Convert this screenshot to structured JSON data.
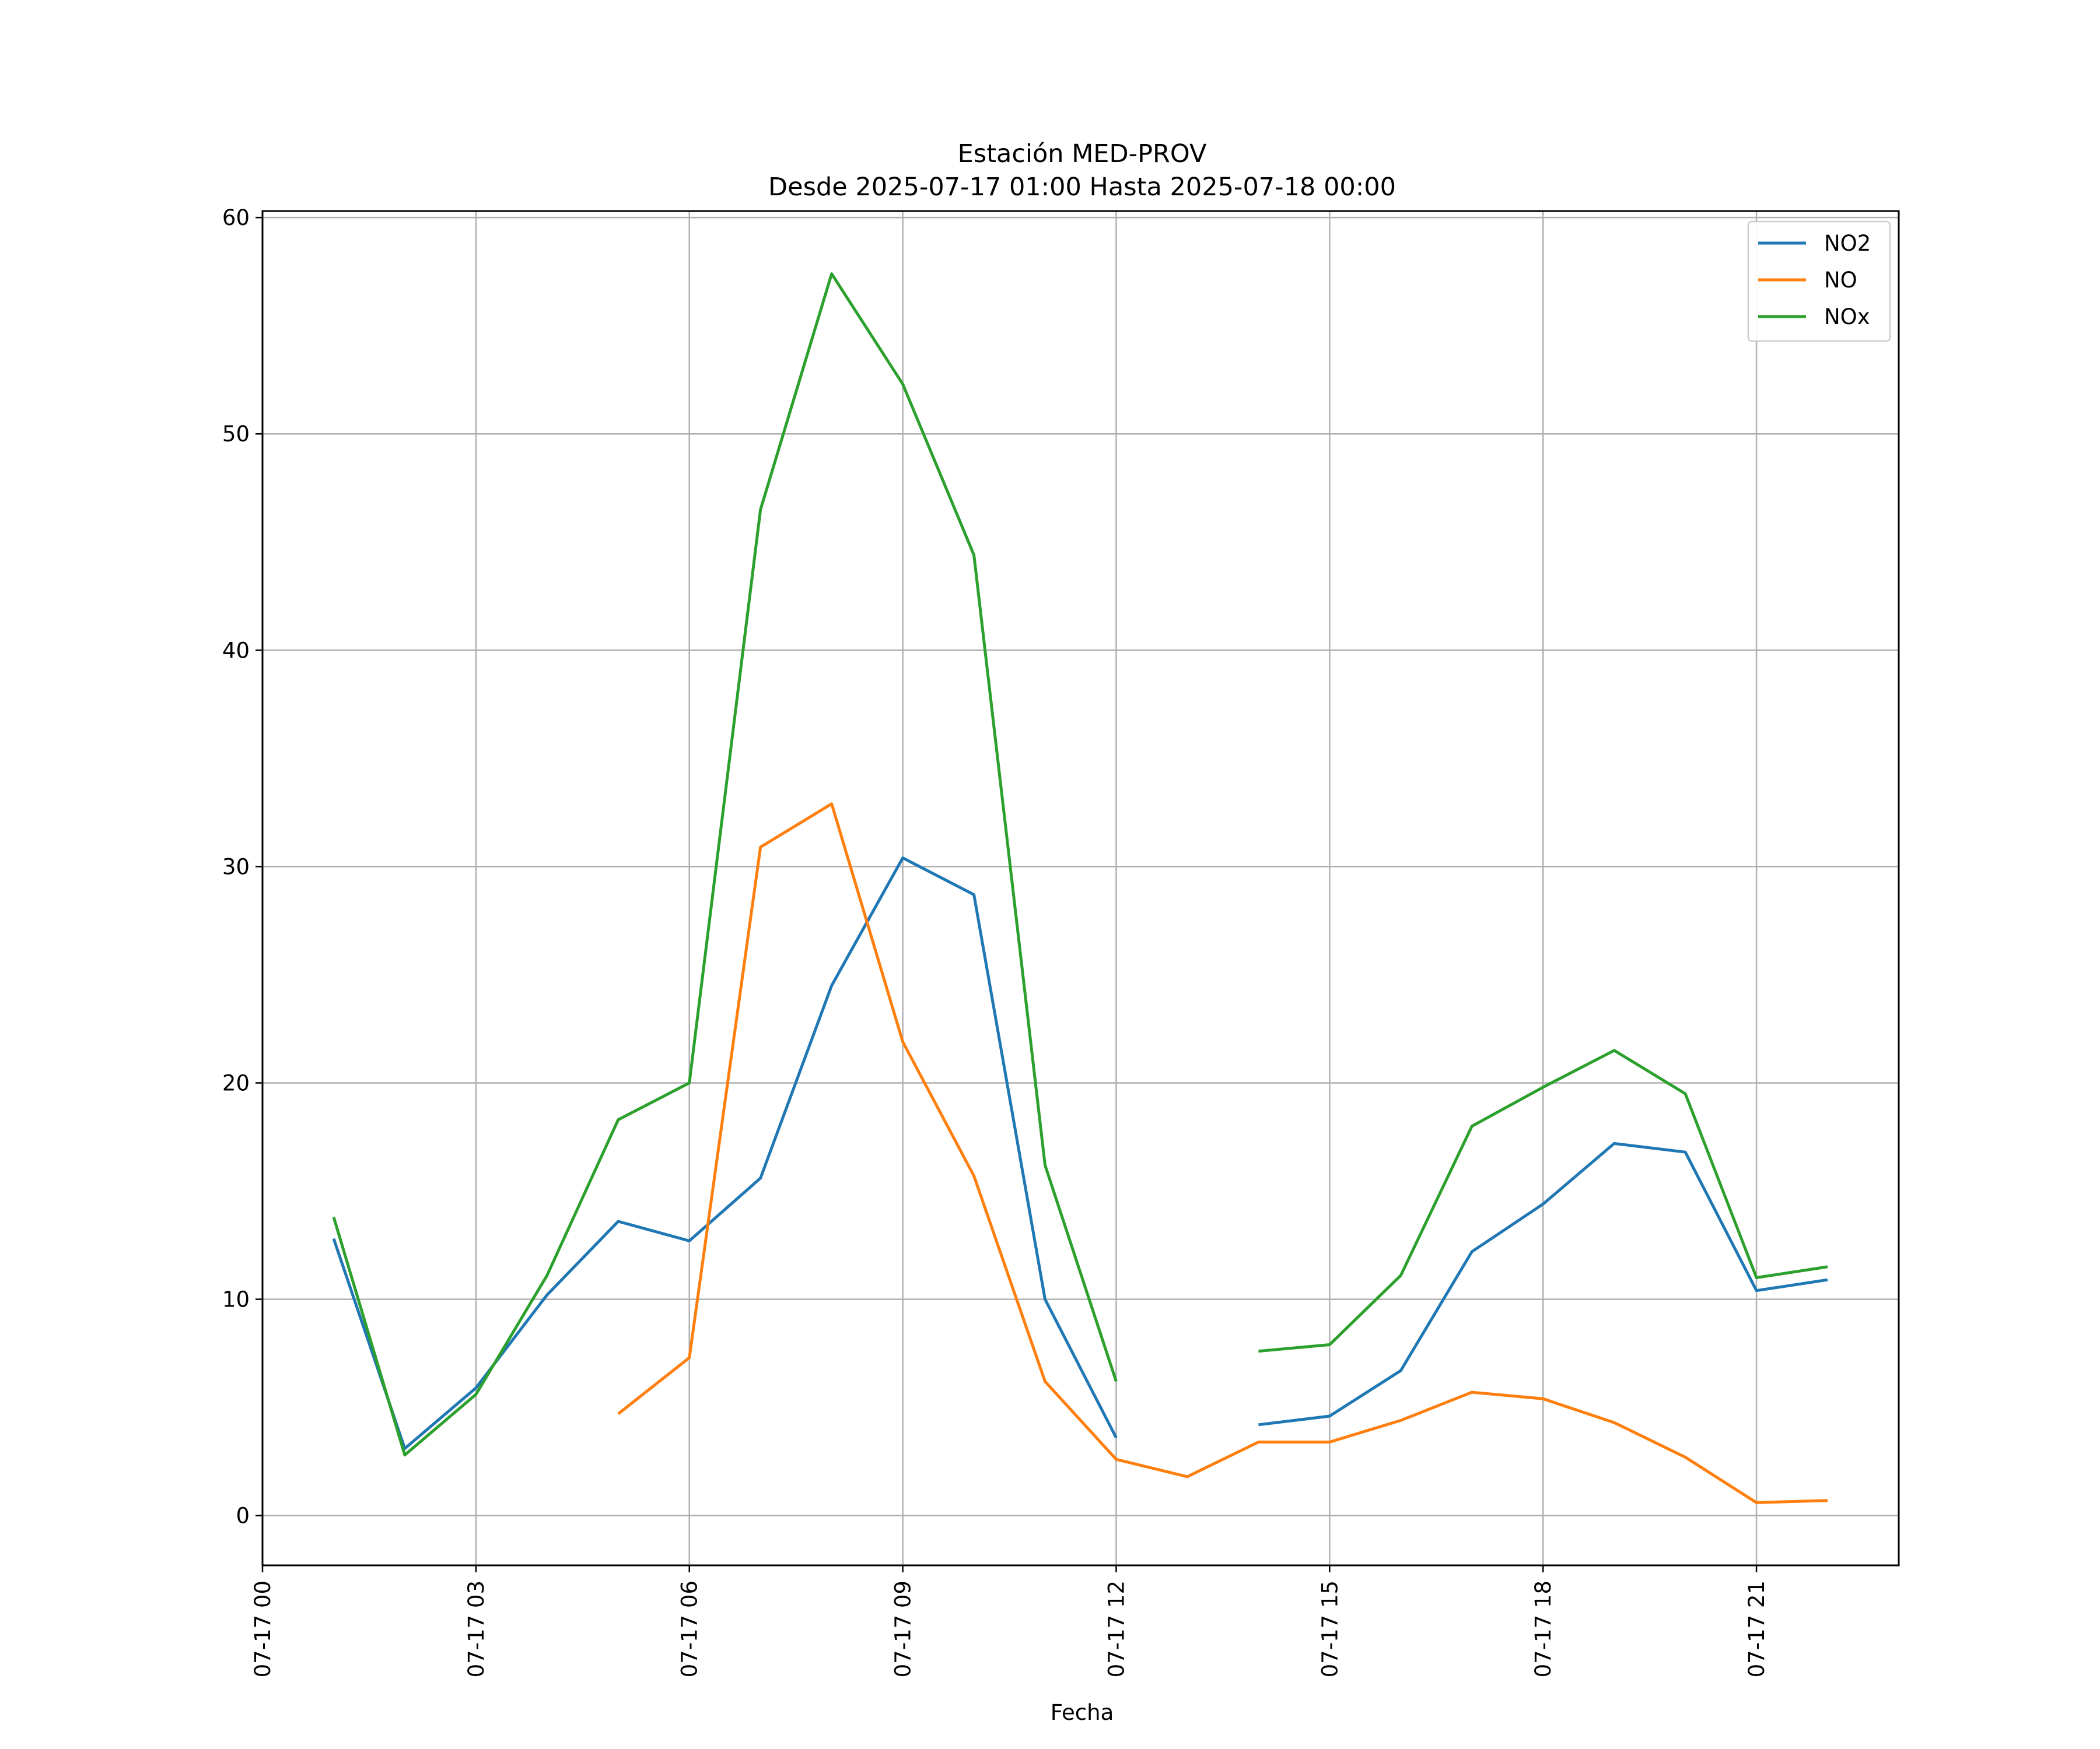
{
  "chart_data": {
    "type": "line",
    "title": "Estación MED-PROV",
    "subtitle": "Desde 2025-07-17 01:00 Hasta 2025-07-18 00:00",
    "xlabel": "Fecha",
    "ylabel": "",
    "x": [
      "2025-07-17 01:00",
      "2025-07-17 02:00",
      "2025-07-17 03:00",
      "2025-07-17 04:00",
      "2025-07-17 05:00",
      "2025-07-17 06:00",
      "2025-07-17 07:00",
      "2025-07-17 08:00",
      "2025-07-17 09:00",
      "2025-07-17 10:00",
      "2025-07-17 11:00",
      "2025-07-17 12:00",
      "2025-07-17 13:00",
      "2025-07-17 14:00",
      "2025-07-17 15:00",
      "2025-07-17 16:00",
      "2025-07-17 17:00",
      "2025-07-17 18:00",
      "2025-07-17 19:00",
      "2025-07-17 20:00",
      "2025-07-17 21:00",
      "2025-07-17 22:00"
    ],
    "xlim": [
      "2025-07-17 00:00",
      "2025-07-17 23:00"
    ],
    "ylim": [
      -2.3,
      60.3
    ],
    "xticks": [
      "07-17 00",
      "07-17 03",
      "07-17 06",
      "07-17 09",
      "07-17 12",
      "07-17 15",
      "07-17 18",
      "07-17 21"
    ],
    "yticks": [
      0,
      10,
      20,
      30,
      40,
      50,
      60
    ],
    "grid": true,
    "legend_position": "top-right",
    "series": [
      {
        "name": "NO2",
        "color": "#1f77b4",
        "values": [
          12.8,
          3.1,
          5.9,
          10.2,
          13.6,
          12.7,
          15.6,
          24.5,
          30.4,
          28.7,
          10.0,
          3.6,
          null,
          4.2,
          4.6,
          6.7,
          12.2,
          14.4,
          17.2,
          16.8,
          10.4,
          10.9
        ]
      },
      {
        "name": "NO",
        "color": "#ff7f0e",
        "values": [
          null,
          null,
          null,
          null,
          4.7,
          7.3,
          30.9,
          32.9,
          21.9,
          15.7,
          6.2,
          2.6,
          1.8,
          3.4,
          3.4,
          4.4,
          5.7,
          5.4,
          4.3,
          2.7,
          0.6,
          0.7
        ]
      },
      {
        "name": "NOx",
        "color": "#2ca02c",
        "values": [
          13.8,
          2.8,
          5.6,
          11.1,
          18.3,
          20.0,
          46.5,
          57.4,
          52.3,
          44.4,
          16.2,
          6.2,
          null,
          7.6,
          7.9,
          11.1,
          18.0,
          19.8,
          21.5,
          19.5,
          11.0,
          11.5
        ]
      }
    ]
  }
}
